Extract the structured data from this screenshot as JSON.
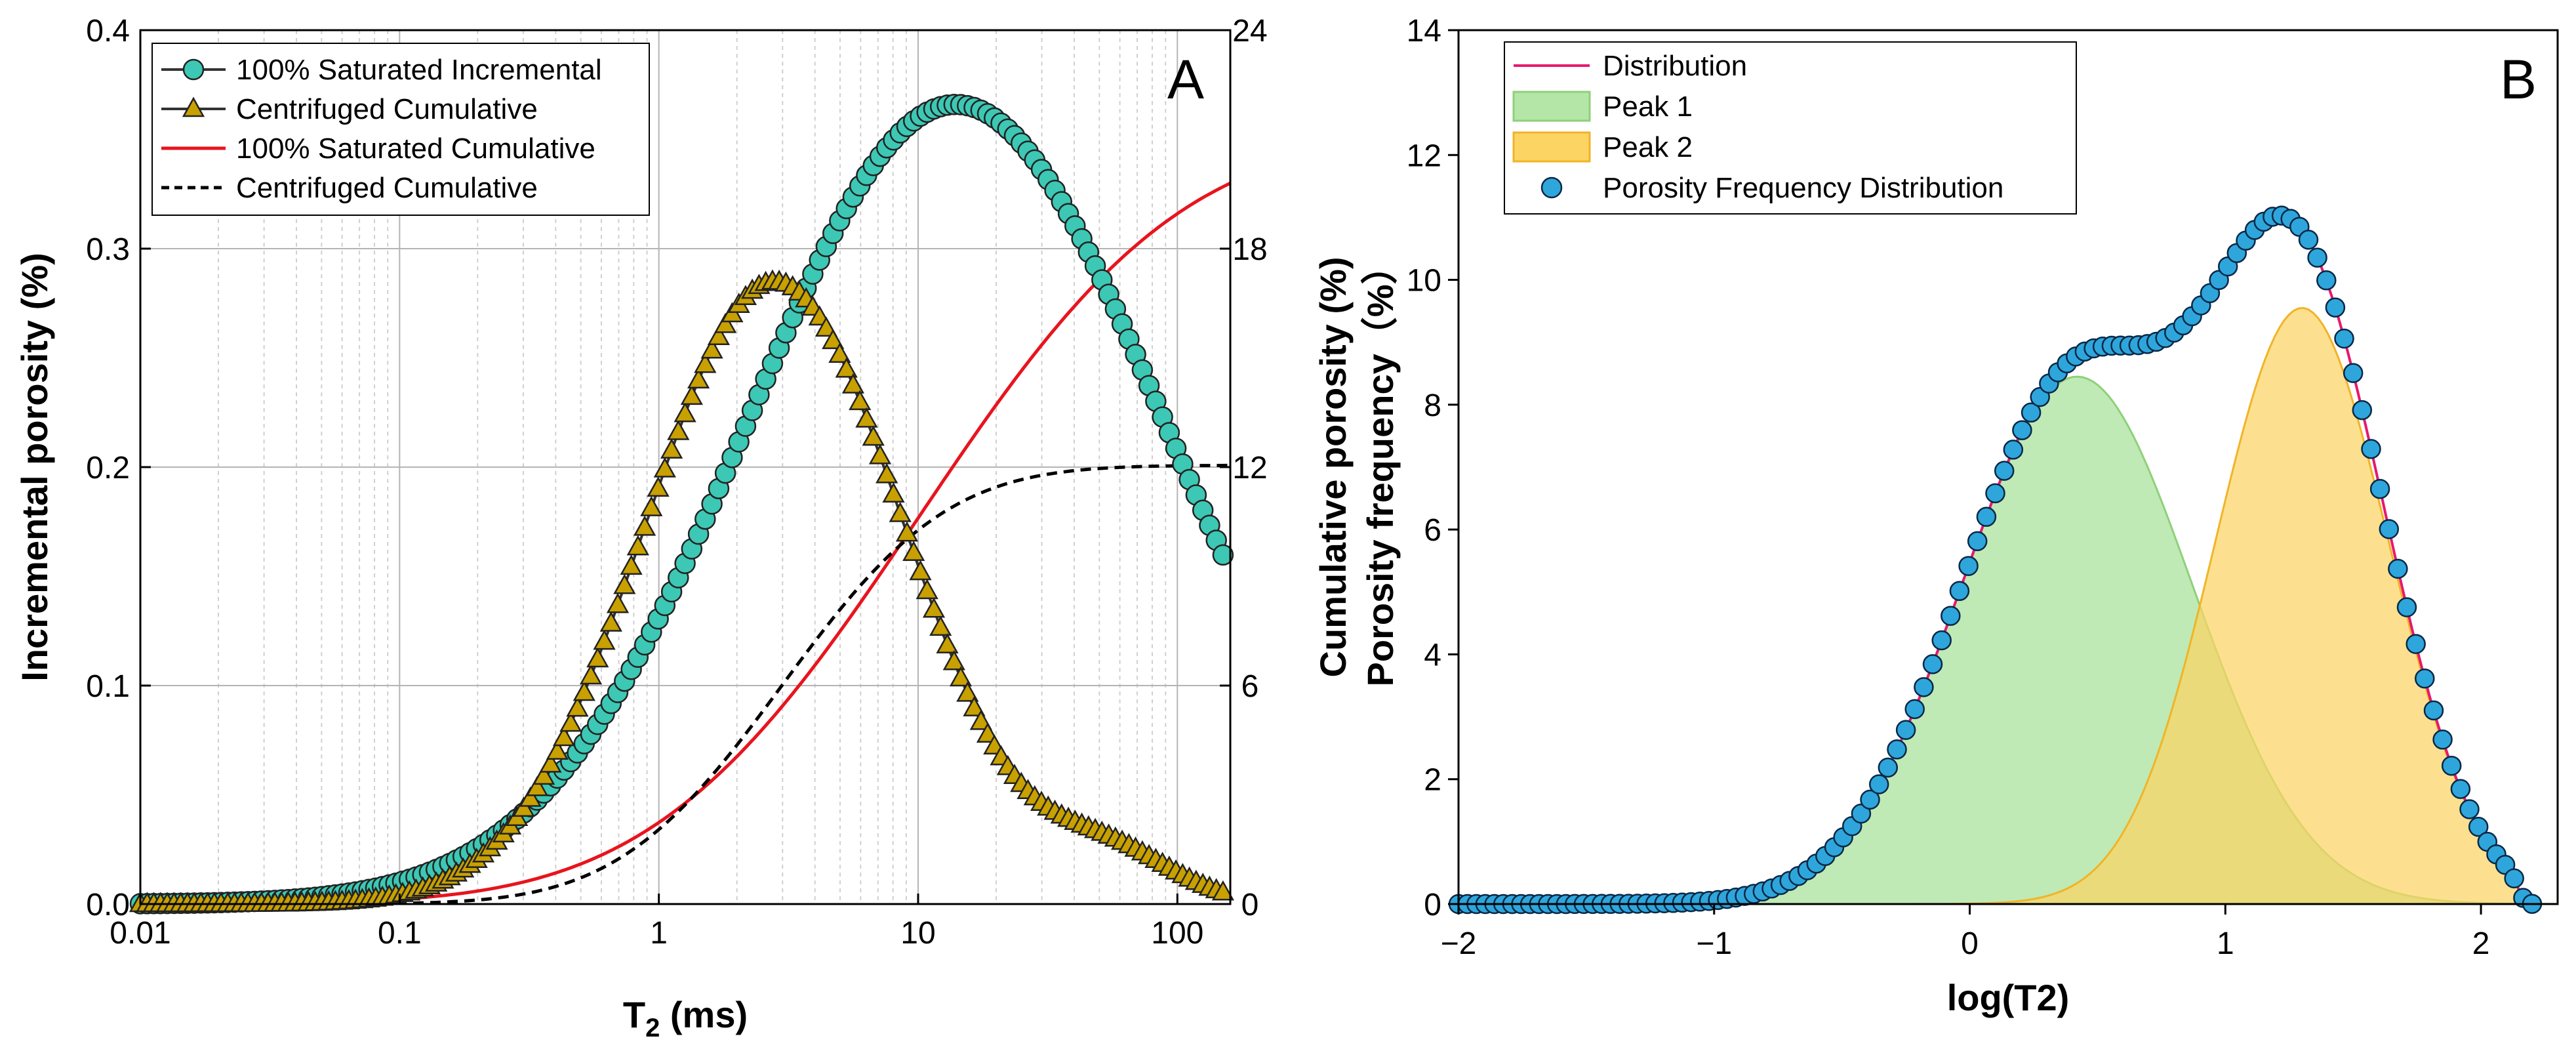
{
  "chart_data": [
    {
      "id": "A",
      "type": "line",
      "panel_label": "A",
      "xscale": "log",
      "xlim": [
        0.01,
        160
      ],
      "ylim_left": [
        0,
        0.4
      ],
      "ylim_right": [
        0,
        24
      ],
      "xticks": [
        {
          "v": 0.01,
          "label": "0.01"
        },
        {
          "v": 0.1,
          "label": "0.1"
        },
        {
          "v": 1,
          "label": "1"
        },
        {
          "v": 10,
          "label": "10"
        },
        {
          "v": 100,
          "label": "100"
        }
      ],
      "yticks_left": [
        {
          "v": 0,
          "label": "0.0"
        },
        {
          "v": 0.1,
          "label": "0.1"
        },
        {
          "v": 0.2,
          "label": "0.2"
        },
        {
          "v": 0.3,
          "label": "0.3"
        },
        {
          "v": 0.4,
          "label": "0.4"
        }
      ],
      "yticks_right": [
        {
          "v": 0,
          "label": "0"
        },
        {
          "v": 6,
          "label": "6"
        },
        {
          "v": 12,
          "label": "12"
        },
        {
          "v": 18,
          "label": "18"
        },
        {
          "v": 24,
          "label": "24"
        }
      ],
      "xlabel_main": "T",
      "xlabel_sub": "2",
      "xlabel_unit": " (ms)",
      "ylabel_left": "Incremental porosity (%)",
      "ylabel_right": "Cumulative porosity (%)",
      "grid": true,
      "legend_position": "top-left",
      "series": [
        {
          "name": "100% Saturated Incremental",
          "axis": "left",
          "model": "lognormal",
          "amplitude": 0.366,
          "peak_T2": 14,
          "log_sigma": 0.8,
          "marker": "circle",
          "fill": "#3cc8b4",
          "color": "#333333"
        },
        {
          "name": "Centrifuged Cumulative",
          "axis": "left",
          "model": "lognormal_bimodal",
          "amplitude": 0.285,
          "peak_T2": 2.8,
          "log_sigma": 0.5,
          "amplitude2": 0.021,
          "peak2_T2": 55,
          "log_sigma2": 0.25,
          "marker": "triangle",
          "fill": "#c8a000",
          "color": "#333333"
        },
        {
          "name": "100% Saturated Cumulative",
          "axis": "right",
          "model": "cumulative",
          "total": 21.2,
          "mid_T2": 10,
          "log_sigma": 0.8,
          "color": "#e8141e",
          "dash": "solid"
        },
        {
          "name": "Centrifuged Cumulative",
          "axis": "right",
          "model": "cumulative",
          "total": 12.05,
          "mid_T2": 3,
          "log_sigma": 0.5,
          "color": "#000000",
          "dash": "dashed"
        }
      ]
    },
    {
      "id": "B",
      "type": "area",
      "panel_label": "B",
      "xlim": [
        -2,
        2.3
      ],
      "ylim": [
        0,
        14
      ],
      "xticks": [
        {
          "v": -2,
          "label": "−2"
        },
        {
          "v": -1,
          "label": "−1"
        },
        {
          "v": 0,
          "label": "0"
        },
        {
          "v": 1,
          "label": "1"
        },
        {
          "v": 2,
          "label": "2"
        }
      ],
      "yticks": [
        {
          "v": 0,
          "label": "0"
        },
        {
          "v": 2,
          "label": "2"
        },
        {
          "v": 4,
          "label": "4"
        },
        {
          "v": 6,
          "label": "6"
        },
        {
          "v": 8,
          "label": "8"
        },
        {
          "v": 10,
          "label": "10"
        },
        {
          "v": 12,
          "label": "12"
        },
        {
          "v": 14,
          "label": "14"
        }
      ],
      "xlabel": "log(T2)",
      "ylabel": "Porosity frequency（%）",
      "grid": false,
      "legend_position": "top-left",
      "peaks": [
        {
          "name": "Peak 1",
          "center": 0.42,
          "height": 8.45,
          "sigma": 0.45,
          "fill": "#b4e6a8",
          "stroke": "#8fd07a"
        },
        {
          "name": "Peak 2",
          "center": 1.3,
          "height": 9.55,
          "sigma": 0.34,
          "fill": "#fcd464",
          "stroke": "#f0b428"
        }
      ],
      "distribution": {
        "name": "Distribution",
        "color": "#e6196e"
      },
      "points": {
        "name": "Porosity Frequency Distribution",
        "fill": "#2ea6dc",
        "stroke": "#0a2846",
        "x_start": -2,
        "x_end": 2.22,
        "step": 0.035
      }
    }
  ]
}
